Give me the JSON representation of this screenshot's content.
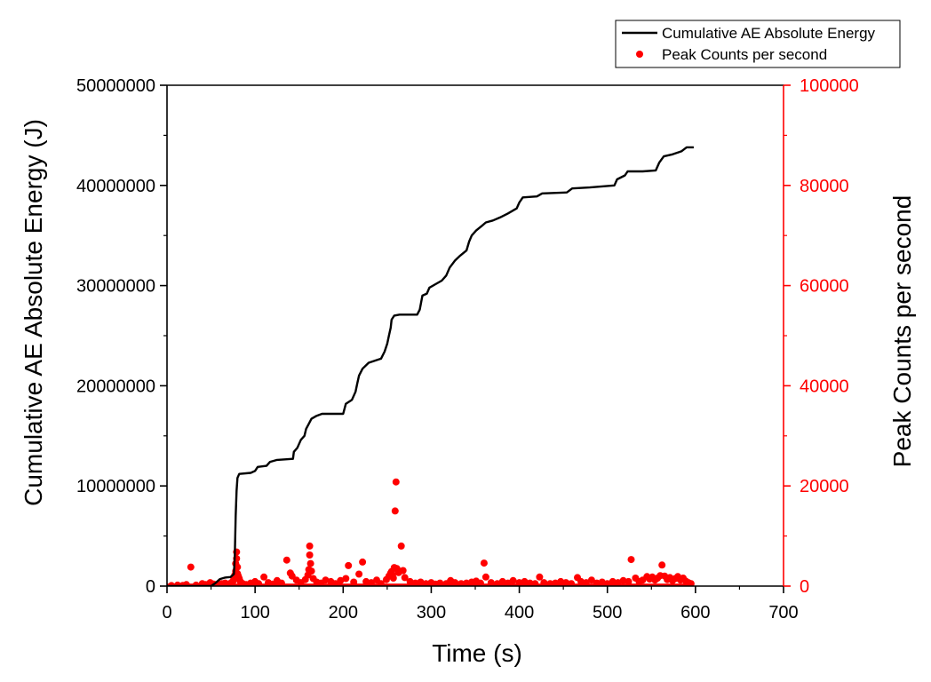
{
  "chart_data": {
    "type": "line+scatter",
    "xlabel": "Time (s)",
    "ylabel_left": "Cumulative AE Absolute Energy (J)",
    "ylabel_right": "Peak Counts per second",
    "xlim": [
      0,
      700
    ],
    "ylim_left": [
      0,
      50000000
    ],
    "ylim_right": [
      0,
      100000
    ],
    "x_ticks": [
      "0",
      "100",
      "200",
      "300",
      "400",
      "500",
      "600",
      "700"
    ],
    "y_left_ticks": [
      "0",
      "10000000",
      "20000000",
      "30000000",
      "40000000",
      "50000000"
    ],
    "y_right_ticks": [
      "0",
      "20000",
      "40000",
      "60000",
      "80000",
      "100000"
    ],
    "legend_position": "top-right, above plot",
    "grid": false,
    "series": [
      {
        "name": "Cumulative AE Absolute Energy",
        "axis": "left",
        "kind": "line",
        "color": "#000000",
        "points": [
          [
            0,
            0
          ],
          [
            50,
            0
          ],
          [
            55,
            300000
          ],
          [
            60,
            700000
          ],
          [
            66,
            850000
          ],
          [
            72,
            900000
          ],
          [
            76,
            1200000
          ],
          [
            77,
            3000000
          ],
          [
            78,
            7000000
          ],
          [
            79,
            9500000
          ],
          [
            80,
            10800000
          ],
          [
            82,
            11200000
          ],
          [
            95,
            11300000
          ],
          [
            100,
            11500000
          ],
          [
            103,
            11900000
          ],
          [
            113,
            12000000
          ],
          [
            117,
            12400000
          ],
          [
            125,
            12600000
          ],
          [
            143,
            12700000
          ],
          [
            144,
            13400000
          ],
          [
            148,
            13800000
          ],
          [
            152,
            14600000
          ],
          [
            156,
            15000000
          ],
          [
            158,
            15700000
          ],
          [
            161,
            16200000
          ],
          [
            164,
            16700000
          ],
          [
            170,
            17000000
          ],
          [
            176,
            17200000
          ],
          [
            200,
            17200000
          ],
          [
            203,
            18200000
          ],
          [
            210,
            18600000
          ],
          [
            214,
            19400000
          ],
          [
            216,
            20200000
          ],
          [
            218,
            21000000
          ],
          [
            222,
            21700000
          ],
          [
            229,
            22300000
          ],
          [
            243,
            22700000
          ],
          [
            247,
            23400000
          ],
          [
            250,
            24200000
          ],
          [
            252,
            25000000
          ],
          [
            254,
            25800000
          ],
          [
            255,
            26600000
          ],
          [
            258,
            27000000
          ],
          [
            264,
            27100000
          ],
          [
            284,
            27100000
          ],
          [
            287,
            27600000
          ],
          [
            290,
            29000000
          ],
          [
            295,
            29200000
          ],
          [
            298,
            29800000
          ],
          [
            304,
            30100000
          ],
          [
            312,
            30500000
          ],
          [
            317,
            31000000
          ],
          [
            321,
            31800000
          ],
          [
            327,
            32500000
          ],
          [
            333,
            33000000
          ],
          [
            340,
            33500000
          ],
          [
            343,
            34400000
          ],
          [
            346,
            35000000
          ],
          [
            351,
            35500000
          ],
          [
            358,
            36000000
          ],
          [
            362,
            36300000
          ],
          [
            370,
            36500000
          ],
          [
            378,
            36800000
          ],
          [
            387,
            37200000
          ],
          [
            397,
            37700000
          ],
          [
            400,
            38300000
          ],
          [
            404,
            38800000
          ],
          [
            420,
            38900000
          ],
          [
            426,
            39200000
          ],
          [
            454,
            39300000
          ],
          [
            460,
            39700000
          ],
          [
            480,
            39800000
          ],
          [
            508,
            40000000
          ],
          [
            511,
            40600000
          ],
          [
            520,
            41000000
          ],
          [
            523,
            41400000
          ],
          [
            540,
            41400000
          ],
          [
            555,
            41500000
          ],
          [
            559,
            42300000
          ],
          [
            564,
            42900000
          ],
          [
            574,
            43100000
          ],
          [
            584,
            43400000
          ],
          [
            590,
            43800000
          ],
          [
            598,
            43800000
          ]
        ]
      },
      {
        "name": "Peak Counts per second",
        "axis": "right",
        "kind": "scatter",
        "color": "#ff0000",
        "points": [
          [
            5,
            100
          ],
          [
            12,
            200
          ],
          [
            18,
            150
          ],
          [
            22,
            300
          ],
          [
            27,
            3800
          ],
          [
            33,
            200
          ],
          [
            40,
            500
          ],
          [
            44,
            300
          ],
          [
            49,
            700
          ],
          [
            53,
            400
          ],
          [
            57,
            300
          ],
          [
            62,
            500
          ],
          [
            66,
            600
          ],
          [
            70,
            400
          ],
          [
            73,
            700
          ],
          [
            75,
            1000
          ],
          [
            76,
            1500
          ],
          [
            77,
            2200
          ],
          [
            78,
            3000
          ],
          [
            78,
            4500
          ],
          [
            79,
            6800
          ],
          [
            79,
            5500
          ],
          [
            80,
            3800
          ],
          [
            80,
            2500
          ],
          [
            81,
            2000
          ],
          [
            82,
            1500
          ],
          [
            83,
            1000
          ],
          [
            84,
            700
          ],
          [
            86,
            500
          ],
          [
            90,
            300
          ],
          [
            95,
            600
          ],
          [
            100,
            900
          ],
          [
            104,
            500
          ],
          [
            110,
            1800
          ],
          [
            115,
            700
          ],
          [
            120,
            400
          ],
          [
            125,
            1100
          ],
          [
            130,
            600
          ],
          [
            136,
            5200
          ],
          [
            140,
            2600
          ],
          [
            142,
            2000
          ],
          [
            147,
            1200
          ],
          [
            152,
            700
          ],
          [
            157,
            1300
          ],
          [
            160,
            2200
          ],
          [
            161,
            3300
          ],
          [
            162,
            8000
          ],
          [
            162,
            6200
          ],
          [
            163,
            4500
          ],
          [
            164,
            3000
          ],
          [
            166,
            1500
          ],
          [
            170,
            800
          ],
          [
            175,
            600
          ],
          [
            180,
            1200
          ],
          [
            186,
            900
          ],
          [
            191,
            500
          ],
          [
            197,
            1100
          ],
          [
            203,
            1500
          ],
          [
            206,
            4100
          ],
          [
            212,
            800
          ],
          [
            218,
            2400
          ],
          [
            222,
            4800
          ],
          [
            226,
            900
          ],
          [
            232,
            700
          ],
          [
            238,
            1200
          ],
          [
            243,
            500
          ],
          [
            249,
            1300
          ],
          [
            252,
            2000
          ],
          [
            254,
            2600
          ],
          [
            255,
            2900
          ],
          [
            256,
            2200
          ],
          [
            257,
            1600
          ],
          [
            258,
            3700
          ],
          [
            259,
            15000
          ],
          [
            260,
            20800
          ],
          [
            261,
            3500
          ],
          [
            263,
            2700
          ],
          [
            266,
            8000
          ],
          [
            268,
            3100
          ],
          [
            270,
            1700
          ],
          [
            276,
            900
          ],
          [
            282,
            600
          ],
          [
            288,
            800
          ],
          [
            294,
            500
          ],
          [
            300,
            700
          ],
          [
            305,
            400
          ],
          [
            310,
            600
          ],
          [
            317,
            500
          ],
          [
            322,
            1100
          ],
          [
            327,
            700
          ],
          [
            334,
            500
          ],
          [
            340,
            600
          ],
          [
            346,
            800
          ],
          [
            351,
            1000
          ],
          [
            356,
            600
          ],
          [
            360,
            4600
          ],
          [
            362,
            1800
          ],
          [
            368,
            700
          ],
          [
            375,
            500
          ],
          [
            381,
            900
          ],
          [
            387,
            600
          ],
          [
            393,
            1100
          ],
          [
            400,
            700
          ],
          [
            406,
            900
          ],
          [
            412,
            600
          ],
          [
            418,
            500
          ],
          [
            423,
            1800
          ],
          [
            428,
            700
          ],
          [
            435,
            500
          ],
          [
            441,
            600
          ],
          [
            447,
            900
          ],
          [
            453,
            700
          ],
          [
            459,
            500
          ],
          [
            466,
            1700
          ],
          [
            470,
            900
          ],
          [
            476,
            700
          ],
          [
            482,
            1200
          ],
          [
            488,
            600
          ],
          [
            494,
            800
          ],
          [
            500,
            500
          ],
          [
            506,
            900
          ],
          [
            512,
            700
          ],
          [
            518,
            1100
          ],
          [
            524,
            900
          ],
          [
            527,
            5300
          ],
          [
            532,
            1600
          ],
          [
            536,
            900
          ],
          [
            540,
            1200
          ],
          [
            545,
            1900
          ],
          [
            548,
            1400
          ],
          [
            551,
            1800
          ],
          [
            554,
            1200
          ],
          [
            557,
            1600
          ],
          [
            560,
            2100
          ],
          [
            562,
            4200
          ],
          [
            565,
            2000
          ],
          [
            568,
            1300
          ],
          [
            571,
            1700
          ],
          [
            574,
            1100
          ],
          [
            577,
            1500
          ],
          [
            580,
            1900
          ],
          [
            583,
            1200
          ],
          [
            586,
            1600
          ],
          [
            589,
            1000
          ],
          [
            592,
            700
          ],
          [
            595,
            500
          ]
        ]
      }
    ]
  }
}
